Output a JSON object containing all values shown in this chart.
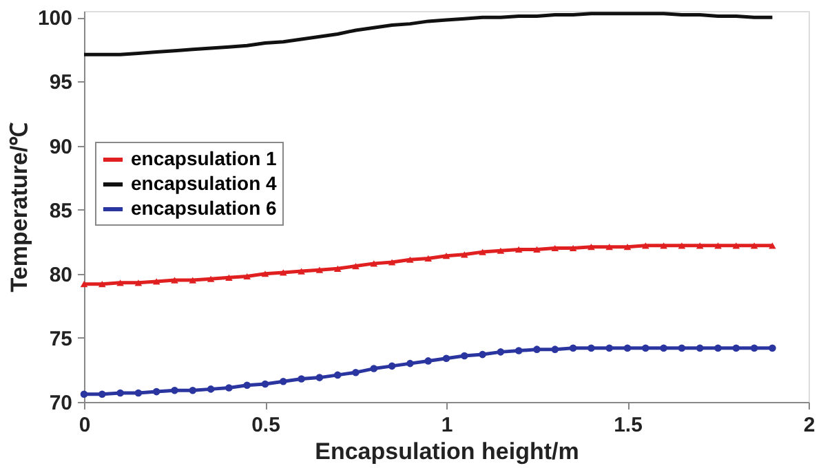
{
  "chart_data": {
    "type": "line",
    "xlabel": "Encapsulation height/m",
    "ylabel": "Temperature/℃",
    "x": [
      0,
      0.05,
      0.1,
      0.15,
      0.2,
      0.25,
      0.3,
      0.35,
      0.4,
      0.45,
      0.5,
      0.55,
      0.6,
      0.65,
      0.7,
      0.75,
      0.8,
      0.85,
      0.9,
      0.95,
      1,
      1.05,
      1.1,
      1.15,
      1.2,
      1.25,
      1.3,
      1.35,
      1.4,
      1.45,
      1.5,
      1.55,
      1.6,
      1.65,
      1.7,
      1.75,
      1.8,
      1.85,
      1.9
    ],
    "series": [
      {
        "name": "encapsulation 1",
        "color": "#e02020",
        "marker": "triangle",
        "values": [
          79.2,
          79.2,
          79.3,
          79.3,
          79.4,
          79.5,
          79.5,
          79.6,
          79.7,
          79.8,
          80.0,
          80.1,
          80.2,
          80.3,
          80.4,
          80.6,
          80.8,
          80.9,
          81.1,
          81.2,
          81.4,
          81.5,
          81.7,
          81.8,
          81.9,
          81.9,
          82.0,
          82.0,
          82.1,
          82.1,
          82.1,
          82.2,
          82.2,
          82.2,
          82.2,
          82.2,
          82.2,
          82.2,
          82.2
        ]
      },
      {
        "name": "encapsulation 4",
        "color": "#111111",
        "marker": "none",
        "values": [
          97.1,
          97.1,
          97.1,
          97.2,
          97.3,
          97.4,
          97.5,
          97.6,
          97.7,
          97.8,
          98.0,
          98.1,
          98.3,
          98.5,
          98.7,
          99.0,
          99.2,
          99.4,
          99.5,
          99.7,
          99.8,
          99.9,
          100.0,
          100.0,
          100.1,
          100.1,
          100.2,
          100.2,
          100.3,
          100.3,
          100.3,
          100.3,
          100.3,
          100.2,
          100.2,
          100.1,
          100.1,
          100.0,
          100.0
        ]
      },
      {
        "name": "encapsulation 6",
        "color": "#2a35a0",
        "marker": "circle",
        "values": [
          70.6,
          70.6,
          70.7,
          70.7,
          70.8,
          70.9,
          70.9,
          71.0,
          71.1,
          71.3,
          71.4,
          71.6,
          71.8,
          71.9,
          72.1,
          72.3,
          72.6,
          72.8,
          73.0,
          73.2,
          73.4,
          73.6,
          73.7,
          73.9,
          74.0,
          74.1,
          74.1,
          74.2,
          74.2,
          74.2,
          74.2,
          74.2,
          74.2,
          74.2,
          74.2,
          74.2,
          74.2,
          74.2,
          74.2
        ]
      }
    ],
    "xlim": [
      0,
      2
    ],
    "xticks": [
      0,
      0.5,
      1,
      1.5,
      2
    ],
    "ylim": [
      70,
      100.5
    ],
    "yticks": [
      70,
      75,
      80,
      85,
      90,
      95,
      100
    ],
    "grid": false,
    "legend": "left",
    "line_style": "solid"
  }
}
